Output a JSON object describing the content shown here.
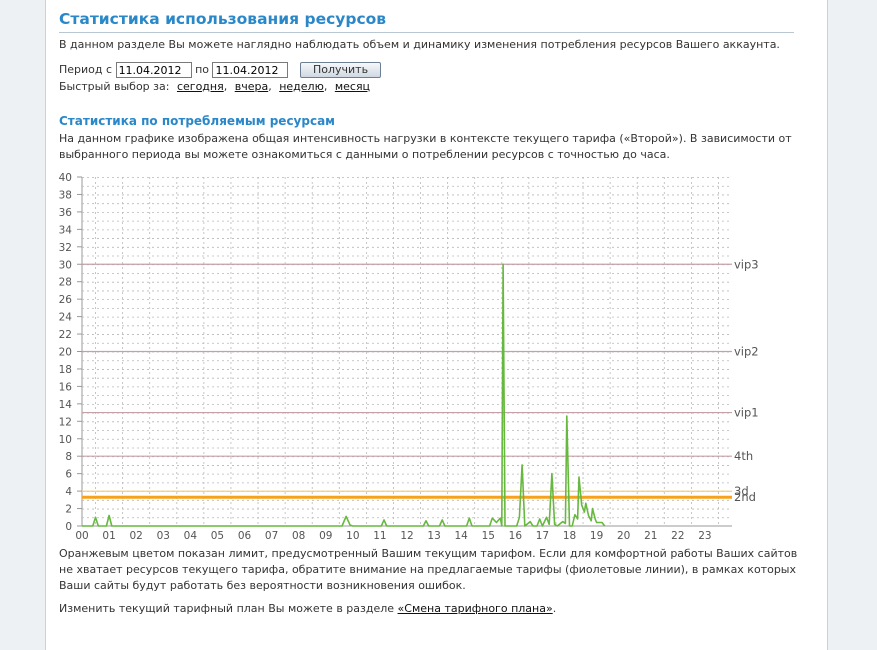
{
  "page": {
    "title": "Статистика использования ресурсов",
    "intro": "В данном разделе Вы можете наглядно наблюдать объем и динамику изменения потребления ресурсов Вашего аккаунта."
  },
  "period": {
    "from_label": "Период с",
    "from_value": "11.04.2012",
    "to_label": "по",
    "to_value": "11.04.2012",
    "submit_label": "Получить"
  },
  "quick_select": {
    "label": "Быстрый выбор за:",
    "links": [
      "сегодня",
      "вчера",
      "неделю",
      "месяц"
    ]
  },
  "section": {
    "title": "Статистика по потребляемым ресурсам",
    "description": "На данном графике изображена общая интенсивность нагрузки в контексте текущего тарифа («Второй»). В зависимости от выбранного периода вы можете ознакомиться с данными о потреблении ресурсов с точностью до часа."
  },
  "chart_data": {
    "type": "line",
    "xlim": [
      0,
      24
    ],
    "ylim": [
      0,
      40
    ],
    "x_ticks": [
      "00",
      "01",
      "02",
      "03",
      "04",
      "05",
      "06",
      "07",
      "08",
      "09",
      "10",
      "11",
      "12",
      "13",
      "14",
      "15",
      "16",
      "17",
      "18",
      "19",
      "20",
      "21",
      "22",
      "23"
    ],
    "y_ticks": [
      0,
      2,
      4,
      6,
      8,
      10,
      12,
      14,
      16,
      18,
      20,
      22,
      24,
      26,
      28,
      30,
      32,
      34,
      36,
      38,
      40
    ],
    "grid": true,
    "colors": {
      "series": "#67b83f",
      "limit": "#f7a21b",
      "tariff": "#c5a0a8"
    },
    "limit": 3.3,
    "tariff_lines": [
      {
        "name": "vip3",
        "value": 30
      },
      {
        "name": "vip2",
        "value": 20
      },
      {
        "name": "vip1",
        "value": 13
      },
      {
        "name": "4th",
        "value": 8
      },
      {
        "name": "3d",
        "value": 4
      },
      {
        "name": "2nd",
        "value": 3.3
      }
    ],
    "series": [
      {
        "values": [
          [
            0.0,
            0
          ],
          [
            0.4,
            0
          ],
          [
            0.5,
            1.0
          ],
          [
            0.6,
            0
          ],
          [
            0.9,
            0
          ],
          [
            1.0,
            1.2
          ],
          [
            1.1,
            0
          ],
          [
            9.6,
            0
          ],
          [
            9.75,
            1.1
          ],
          [
            9.9,
            0.1
          ],
          [
            10.0,
            0
          ],
          [
            11.05,
            0
          ],
          [
            11.15,
            0.7
          ],
          [
            11.25,
            0
          ],
          [
            12.6,
            0
          ],
          [
            12.7,
            0.6
          ],
          [
            12.8,
            0
          ],
          [
            13.2,
            0
          ],
          [
            13.3,
            0.7
          ],
          [
            13.4,
            0
          ],
          [
            14.2,
            0
          ],
          [
            14.3,
            0.9
          ],
          [
            14.4,
            0
          ],
          [
            15.05,
            0
          ],
          [
            15.15,
            0.9
          ],
          [
            15.3,
            0.4
          ],
          [
            15.45,
            0.9
          ],
          [
            15.5,
            0
          ],
          [
            15.55,
            30
          ],
          [
            15.62,
            0
          ],
          [
            15.7,
            0
          ],
          [
            15.85,
            0
          ],
          [
            16.05,
            0
          ],
          [
            16.15,
            1.0
          ],
          [
            16.25,
            7.0
          ],
          [
            16.35,
            0
          ],
          [
            16.55,
            0.5
          ],
          [
            16.65,
            0
          ],
          [
            16.8,
            0
          ],
          [
            16.9,
            0.8
          ],
          [
            17.0,
            0
          ],
          [
            17.15,
            1.0
          ],
          [
            17.25,
            0.2
          ],
          [
            17.35,
            6.0
          ],
          [
            17.45,
            0.2
          ],
          [
            17.55,
            0
          ],
          [
            17.75,
            0.5
          ],
          [
            17.85,
            0.3
          ],
          [
            17.9,
            12.6
          ],
          [
            18.0,
            0
          ],
          [
            18.1,
            0
          ],
          [
            18.2,
            1.3
          ],
          [
            18.3,
            0.8
          ],
          [
            18.35,
            5.6
          ],
          [
            18.45,
            2.4
          ],
          [
            18.55,
            1.6
          ],
          [
            18.6,
            2.6
          ],
          [
            18.7,
            1.2
          ],
          [
            18.8,
            0.6
          ],
          [
            18.85,
            2.0
          ],
          [
            18.95,
            0.8
          ],
          [
            19.0,
            0.4
          ],
          [
            19.2,
            0.4
          ],
          [
            19.3,
            0
          ]
        ]
      }
    ]
  },
  "footer": {
    "note": "Оранжевым цветом показан лимит, предусмотренный Вашим текущим тарифом. Если для комфортной работы Ваших сайтов не хватает ресурсов текущего тарифа, обратите внимание на предлагаемые тарифы (фиолетовые линии), в рамках которых Ваши сайты будут работать без вероятности возникновения ошибок.",
    "change_text": "Изменить текущий тарифный план Вы можете в разделе",
    "change_link": "«Смена тарифного плана»"
  }
}
